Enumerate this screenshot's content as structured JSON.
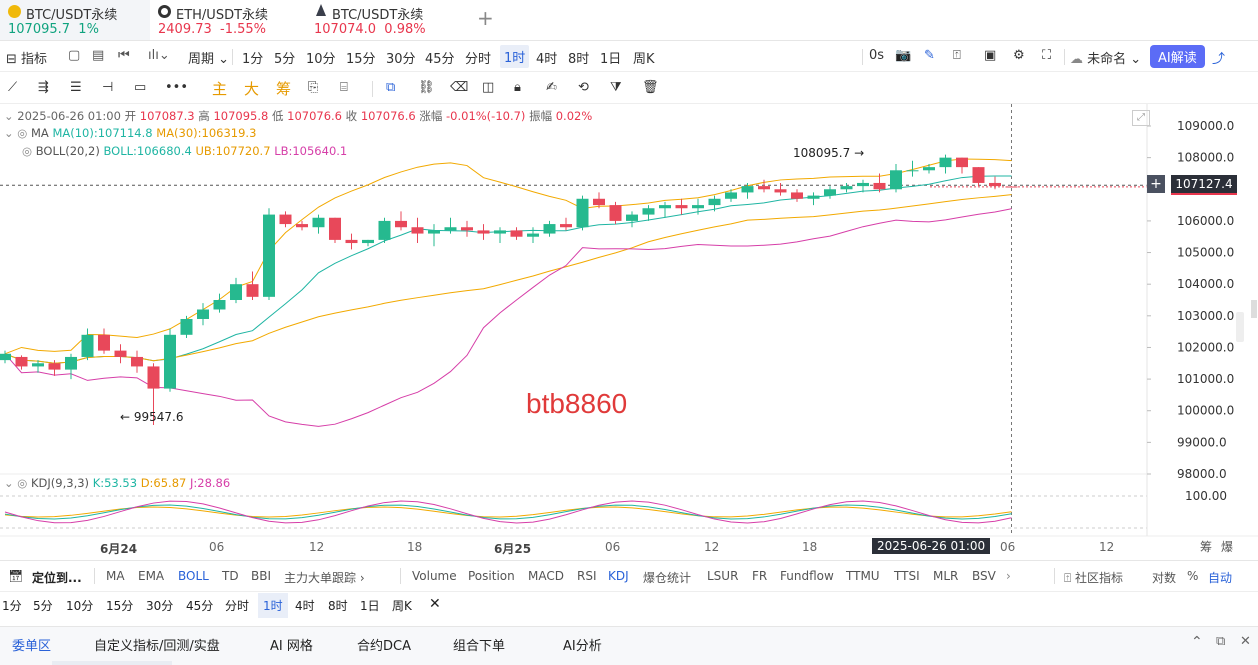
{
  "tabs": [
    {
      "symbol": "BTC/USDT永续",
      "price": "107095.7",
      "change": "1%",
      "dir": "up"
    },
    {
      "symbol": "ETH/USDT永续",
      "price": "2409.73",
      "change": "-1.55%",
      "dir": "down"
    },
    {
      "symbol": "BTC/USDT永续",
      "price": "107074.0",
      "change": "0.98%",
      "dir": "down"
    }
  ],
  "toolbar1": {
    "indicator": "指标",
    "period": "周期",
    "periods": [
      "1分",
      "5分",
      "10分",
      "15分",
      "30分",
      "45分",
      "分时",
      "1时",
      "4时",
      "8时",
      "1日",
      "周K"
    ],
    "selected_period": "1时",
    "countdown": "0s",
    "template": "未命名",
    "ai": "AI解读"
  },
  "toolbar2": {
    "main": "主",
    "big": "大",
    "chip": "筹"
  },
  "ohlc": {
    "datetime": "2025-06-26 01:00",
    "open_label": "开",
    "open": "107087.3",
    "high_label": "高",
    "high": "107095.8",
    "low_label": "低",
    "low": "107076.6",
    "close_label": "收",
    "close": "107076.6",
    "chg_label": "涨幅",
    "chg": "-0.01%(-10.7)",
    "amp_label": "振幅",
    "amp": "0.02%"
  },
  "ma": {
    "name": "MA",
    "ma10": "MA(10):107114.8",
    "ma30": "MA(30):106319.3"
  },
  "boll": {
    "name": "BOLL(20,2)",
    "boll": "BOLL:106680.4",
    "ub": "UB:107720.7",
    "lb": "LB:105640.1"
  },
  "kdj": {
    "name": "KDJ(9,3,3)",
    "k": "K:53.53",
    "d": "D:65.87",
    "j": "J:28.86"
  },
  "price_axis": [
    "109000.0",
    "108000.0",
    "107000.0",
    "106000.0",
    "105000.0",
    "104000.0",
    "103000.0",
    "102000.0",
    "101000.0",
    "100000.0",
    "99000.0",
    "98000.0"
  ],
  "kdj_axis": "100.00",
  "current_price": "107127.4",
  "annotations": {
    "high": "108095.7",
    "low": "← 99547.6",
    "watermark": "btb8860"
  },
  "time_axis": [
    "6月24",
    "06",
    "12",
    "18",
    "6月25",
    "06",
    "12",
    "18",
    "06",
    "12"
  ],
  "cursor_time": "2025-06-26 01:00",
  "axis_right": [
    "筹",
    "爆"
  ],
  "indicator_bar": {
    "locate": "定位到...",
    "main": [
      "MA",
      "EMA",
      "BOLL",
      "TD",
      "BBI",
      "主力大单跟踪"
    ],
    "sub": [
      "Volume",
      "Position",
      "MACD",
      "RSI",
      "KDJ",
      "爆仓统计",
      "LSUR",
      "FR",
      "Fundflow",
      "TTMU",
      "TTSI",
      "MLR",
      "BSV"
    ],
    "community": "社区指标",
    "log": "对数",
    "pct": "%",
    "auto": "自动"
  },
  "period_bar": [
    "1分",
    "5分",
    "10分",
    "15分",
    "30分",
    "45分",
    "分时",
    "1时",
    "4时",
    "8时",
    "1日",
    "周K"
  ],
  "bottom_tabs": [
    "委单区",
    "自定义指标/回测/实盘",
    "AI 网格",
    "合约DCA",
    "组合下单",
    "AI分析"
  ],
  "colors": {
    "up": "#26b98f",
    "down": "#e8485a",
    "ma10": "#1fb5a3",
    "ma30": "#f2a900",
    "boll_ub": "#f2a900",
    "boll_lb": "#d63ea8",
    "accent": "#2a62d8"
  },
  "chart_data": {
    "type": "candlestick",
    "interval": "1h",
    "candles_ohlc": [
      [
        101600,
        101900,
        101500,
        101800
      ],
      [
        101700,
        101750,
        101300,
        101400
      ],
      [
        101400,
        101600,
        101200,
        101500
      ],
      [
        101500,
        101600,
        101100,
        101300
      ],
      [
        101300,
        101800,
        101000,
        101700
      ],
      [
        101700,
        102600,
        101600,
        102400
      ],
      [
        102400,
        102600,
        101800,
        101900
      ],
      [
        101900,
        102100,
        101500,
        101700
      ],
      [
        101700,
        101900,
        101200,
        101400
      ],
      [
        101400,
        101500,
        99547.6,
        100700
      ],
      [
        100700,
        102600,
        100600,
        102400
      ],
      [
        102400,
        103000,
        102300,
        102900
      ],
      [
        102900,
        103400,
        102700,
        103200
      ],
      [
        103200,
        103700,
        103100,
        103500
      ],
      [
        103500,
        104200,
        103400,
        104000
      ],
      [
        104000,
        104400,
        103500,
        103600
      ],
      [
        103600,
        106400,
        103500,
        106200
      ],
      [
        106200,
        106300,
        105800,
        105900
      ],
      [
        105900,
        106000,
        105700,
        105800
      ],
      [
        105800,
        106200,
        105600,
        106100
      ],
      [
        106100,
        106100,
        105300,
        105400
      ],
      [
        105400,
        105600,
        105100,
        105300
      ],
      [
        105300,
        105400,
        105200,
        105400
      ],
      [
        105400,
        106100,
        105300,
        106000
      ],
      [
        106000,
        106300,
        105700,
        105800
      ],
      [
        105800,
        106100,
        105300,
        105600
      ],
      [
        105600,
        105900,
        105200,
        105700
      ],
      [
        105700,
        106100,
        105600,
        105800
      ],
      [
        105800,
        106000,
        105500,
        105700
      ],
      [
        105700,
        105900,
        105400,
        105600
      ],
      [
        105600,
        105800,
        105300,
        105700
      ],
      [
        105700,
        105800,
        105400,
        105500
      ],
      [
        105500,
        105800,
        105300,
        105600
      ],
      [
        105600,
        106000,
        105500,
        105900
      ],
      [
        105900,
        106100,
        105700,
        105800
      ],
      [
        105800,
        106800,
        105700,
        106700
      ],
      [
        106700,
        106900,
        106400,
        106500
      ],
      [
        106500,
        106600,
        105900,
        106000
      ],
      [
        106000,
        106300,
        105800,
        106200
      ],
      [
        106200,
        106500,
        106000,
        106400
      ],
      [
        106400,
        106600,
        106100,
        106500
      ],
      [
        106500,
        106700,
        106200,
        106400
      ],
      [
        106400,
        106700,
        106200,
        106500
      ],
      [
        106500,
        106800,
        106300,
        106700
      ],
      [
        106700,
        107000,
        106600,
        106900
      ],
      [
        106900,
        107200,
        106700,
        107100
      ],
      [
        107100,
        107300,
        106900,
        107000
      ],
      [
        107000,
        107200,
        106800,
        106900
      ],
      [
        106900,
        107000,
        106600,
        106700
      ],
      [
        106700,
        106900,
        106500,
        106800
      ],
      [
        106800,
        107100,
        106700,
        107000
      ],
      [
        107000,
        107200,
        106900,
        107100
      ],
      [
        107100,
        107300,
        106900,
        107200
      ],
      [
        107200,
        107500,
        106900,
        107000
      ],
      [
        107000,
        107800,
        106900,
        107600
      ],
      [
        107600,
        107900,
        107400,
        107600
      ],
      [
        107600,
        107800,
        107500,
        107700
      ],
      [
        107700,
        108095.7,
        107500,
        108000
      ],
      [
        108000,
        108000,
        107500,
        107700
      ],
      [
        107700,
        107700,
        107100,
        107200
      ],
      [
        107200,
        107400,
        107000,
        107100
      ],
      [
        107087.3,
        107095.8,
        107076.6,
        107076.6
      ]
    ],
    "ylim": [
      97500,
      109500
    ],
    "kdj_axis": [
      100
    ]
  }
}
